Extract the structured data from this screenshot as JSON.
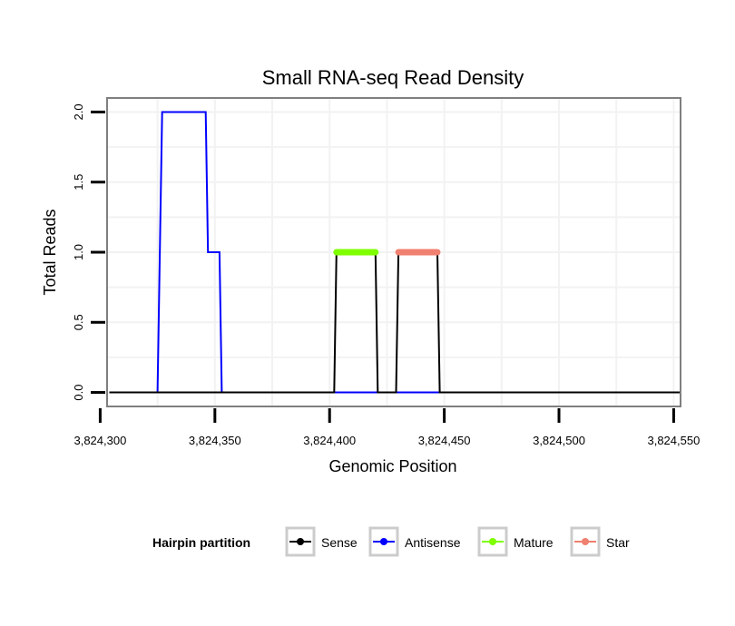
{
  "chart_data": {
    "type": "line",
    "title": "Small RNA-seq Read Density",
    "xlabel": "Genomic Position",
    "ylabel": "Total Reads",
    "xlim": [
      3824303,
      3824553
    ],
    "ylim": [
      -0.1,
      2.1
    ],
    "x_ticks": [
      3824300,
      3824350,
      3824400,
      3824450,
      3824500,
      3824550
    ],
    "x_tick_labels": [
      "3,824,300",
      "3,824,350",
      "3,824,400",
      "3,824,450",
      "3,824,500",
      "3,824,550"
    ],
    "y_ticks": [
      0,
      0.5,
      1,
      1.5,
      2
    ],
    "y_tick_labels": [
      "0.0",
      "0.5",
      "1.0",
      "1.5",
      "2.0"
    ],
    "grid": true,
    "legend_position": "bottom",
    "legend_title": "Hairpin partition",
    "series": [
      {
        "name": "Sense",
        "color": "#000000",
        "x": [
          3824304,
          3824402,
          3824403,
          3824420,
          3824421,
          3824429,
          3824430,
          3824447,
          3824448,
          3824553
        ],
        "y": [
          0,
          0,
          1,
          1,
          0,
          0,
          1,
          1,
          0,
          0
        ]
      },
      {
        "name": "Antisense",
        "color": "#0000ff",
        "x": [
          3824304,
          3824325,
          3824327,
          3824346,
          3824347,
          3824352,
          3824353,
          3824553
        ],
        "y": [
          0,
          0,
          2,
          2,
          1,
          1,
          0,
          0
        ]
      },
      {
        "name": "Mature",
        "color": "#7fff00",
        "x": [
          3824403,
          3824420
        ],
        "y": [
          1,
          1
        ]
      },
      {
        "name": "Star",
        "color": "#f08070",
        "x": [
          3824430,
          3824447
        ],
        "y": [
          1,
          1
        ]
      }
    ]
  }
}
